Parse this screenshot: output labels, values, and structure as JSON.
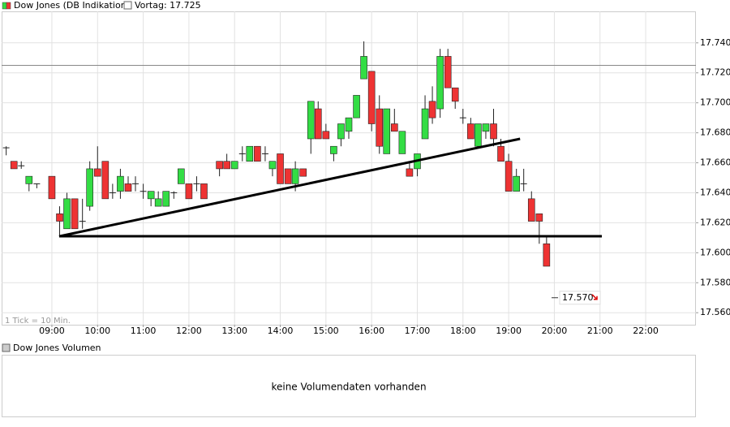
{
  "chart_data": {
    "type": "candlestick",
    "title": "Dow Jones (DB Indikation)",
    "reference_label": "Vortag: 17.725",
    "reference": 17725,
    "tick_note": "1 Tick = 10 Min.",
    "up_color": "#33dd44",
    "down_color": "#ee3333",
    "x": [
      8,
      8.17,
      8.33,
      8.5,
      8.67,
      9,
      9.17,
      9.33,
      9.5,
      9.67,
      9.83,
      10,
      10.17,
      10.33,
      10.5,
      10.67,
      10.83,
      11,
      11.17,
      11.33,
      11.5,
      11.67,
      11.83,
      12,
      12.17,
      12.33,
      12.67,
      12.83,
      13,
      13.17,
      13.33,
      13.5,
      13.67,
      13.83,
      14,
      14.17,
      14.33,
      14.5,
      14.67,
      14.83,
      15,
      15.17,
      15.33,
      15.5,
      15.67,
      15.83,
      16,
      16.17,
      16.33,
      16.5,
      16.67,
      16.83,
      17,
      17.17,
      17.33,
      17.5,
      17.67,
      17.83,
      18,
      18.17,
      18.33,
      18.5,
      18.67,
      18.83,
      19,
      19.17,
      19.33,
      19.5,
      19.67,
      19.83
    ],
    "open": [
      17670,
      17661,
      17658,
      17646,
      17646,
      17651,
      17626,
      17616,
      17636,
      17621,
      17631,
      17656,
      17661,
      17640,
      17641,
      17646,
      17646,
      17641,
      17636,
      17631,
      17631,
      17640,
      17646,
      17646,
      17646,
      17646,
      17661,
      17661,
      17656,
      17666,
      17661,
      17671,
      17666,
      17656,
      17666,
      17656,
      17646,
      17656,
      17676,
      17696,
      17681,
      17666,
      17676,
      17681,
      17690,
      17716,
      17721,
      17696,
      17666,
      17686,
      17666,
      17656,
      17656,
      17676,
      17701,
      17696,
      17731,
      17710,
      17690,
      17686,
      17671,
      17681,
      17686,
      17671,
      17661,
      17641,
      17646,
      17636,
      17626,
      17606
    ],
    "high": [
      17671,
      17661,
      17661,
      17651,
      17646,
      17651,
      17631,
      17640,
      17636,
      17636,
      17661,
      17671,
      17661,
      17646,
      17656,
      17651,
      17651,
      17646,
      17641,
      17641,
      17641,
      17641,
      17656,
      17646,
      17651,
      17646,
      17661,
      17666,
      17661,
      17671,
      17671,
      17671,
      17671,
      17661,
      17666,
      17656,
      17661,
      17656,
      17701,
      17701,
      17686,
      17671,
      17686,
      17690,
      17705,
      17741,
      17721,
      17705,
      17696,
      17696,
      17681,
      17661,
      17666,
      17705,
      17711,
      17736,
      17736,
      17710,
      17696,
      17690,
      17686,
      17686,
      17696,
      17676,
      17666,
      17656,
      17656,
      17641,
      17626,
      17611
    ],
    "low": [
      17665,
      17656,
      17656,
      17641,
      17643,
      17636,
      17611,
      17616,
      17616,
      17616,
      17628,
      17651,
      17636,
      17636,
      17636,
      17641,
      17641,
      17636,
      17631,
      17631,
      17631,
      17636,
      17646,
      17636,
      17641,
      17636,
      17651,
      17656,
      17656,
      17661,
      17661,
      17661,
      17661,
      17651,
      17646,
      17646,
      17641,
      17651,
      17666,
      17676,
      17676,
      17661,
      17671,
      17676,
      17690,
      17716,
      17681,
      17666,
      17666,
      17681,
      17666,
      17651,
      17651,
      17676,
      17686,
      17690,
      17710,
      17696,
      17686,
      17676,
      17671,
      17676,
      17671,
      17661,
      17641,
      17641,
      17641,
      17621,
      17606,
      17591
    ],
    "close": [
      17670,
      17656,
      17658,
      17651,
      17646,
      17636,
      17621,
      17636,
      17616,
      17621,
      17656,
      17651,
      17636,
      17640,
      17651,
      17641,
      17646,
      17641,
      17641,
      17636,
      17641,
      17640,
      17656,
      17636,
      17646,
      17636,
      17656,
      17656,
      17661,
      17666,
      17671,
      17661,
      17666,
      17661,
      17646,
      17646,
      17656,
      17651,
      17701,
      17676,
      17676,
      17671,
      17686,
      17690,
      17705,
      17731,
      17686,
      17671,
      17696,
      17681,
      17681,
      17651,
      17666,
      17696,
      17690,
      17731,
      17710,
      17701,
      17690,
      17676,
      17686,
      17686,
      17676,
      17661,
      17641,
      17651,
      17646,
      17621,
      17621,
      17591
    ],
    "trendlines": [
      {
        "x": [
          9.16,
          19.25
        ],
        "y": [
          17611,
          17676
        ]
      },
      {
        "x": [
          9.16,
          21.04
        ],
        "y": [
          17611,
          17611
        ]
      }
    ],
    "last_price": {
      "value": 17570,
      "label": "17.570"
    },
    "xlim": [
      7.9,
      23.1
    ],
    "ylim": [
      17552,
      17761
    ],
    "xticks": [
      {
        "value": 9,
        "label": "09:00"
      },
      {
        "value": 10,
        "label": "10:00"
      },
      {
        "value": 11,
        "label": "11:00"
      },
      {
        "value": 12,
        "label": "12:00"
      },
      {
        "value": 13,
        "label": "13:00"
      },
      {
        "value": 14,
        "label": "14:00"
      },
      {
        "value": 15,
        "label": "15:00"
      },
      {
        "value": 16,
        "label": "16:00"
      },
      {
        "value": 17,
        "label": "17:00"
      },
      {
        "value": 18,
        "label": "18:00"
      },
      {
        "value": 19,
        "label": "19:00"
      },
      {
        "value": 20,
        "label": "20:00"
      },
      {
        "value": 21,
        "label": "21:00"
      },
      {
        "value": 22,
        "label": "22:00"
      }
    ],
    "yticks": [
      {
        "value": 17560,
        "label": "17.560"
      },
      {
        "value": 17580,
        "label": "17.580"
      },
      {
        "value": 17600,
        "label": "17.600"
      },
      {
        "value": 17620,
        "label": "17.620"
      },
      {
        "value": 17640,
        "label": "17.640"
      },
      {
        "value": 17660,
        "label": "17.660"
      },
      {
        "value": 17680,
        "label": "17.680"
      },
      {
        "value": 17700,
        "label": "17.700"
      },
      {
        "value": 17720,
        "label": "17.720"
      },
      {
        "value": 17740,
        "label": "17.740"
      }
    ],
    "grid": true,
    "volume_title": "Dow Jones Volumen",
    "volume_message": "keine Volumendaten vorhanden"
  }
}
